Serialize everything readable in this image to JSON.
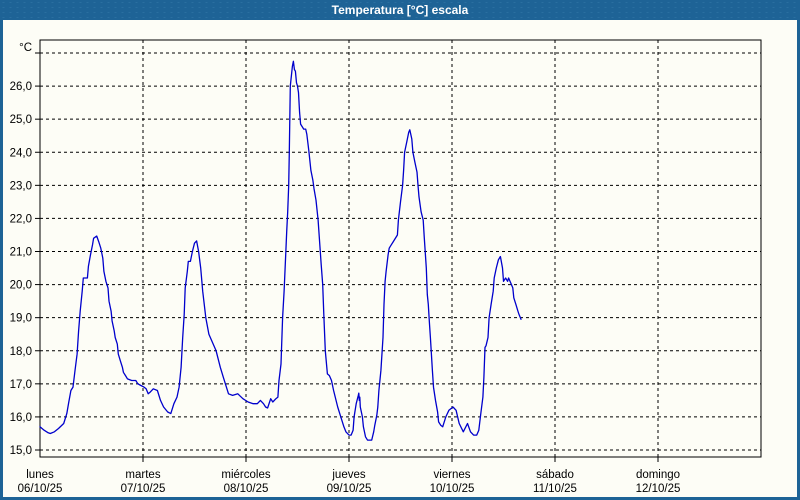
{
  "window": {
    "title": "Temperatura [°C] escala"
  },
  "colors": {
    "title_bar": "#1e6396",
    "frame_border": "#1e6396",
    "plot_background": "#fdfdf6",
    "grid": "#000000",
    "axis_text": "#000000",
    "series_line": "#0000cc"
  },
  "chart_data": {
    "type": "line",
    "title": "Temperatura [°C] escala",
    "xlabel": "",
    "ylabel": "°C",
    "ylim": [
      15,
      27
    ],
    "grid": "dashed",
    "legend": "none",
    "y_axis": {
      "unit_label": "°C",
      "gridline_step": 1,
      "ticks": [
        {
          "v": 27,
          "label": ""
        },
        {
          "v": 26,
          "label": "26,0"
        },
        {
          "v": 25,
          "label": "25,0"
        },
        {
          "v": 24,
          "label": "24,0"
        },
        {
          "v": 23,
          "label": "23,0"
        },
        {
          "v": 22,
          "label": "22,0"
        },
        {
          "v": 21,
          "label": "21,0"
        },
        {
          "v": 20,
          "label": "20,0"
        },
        {
          "v": 19,
          "label": "19,0"
        },
        {
          "v": 18,
          "label": "18,0"
        },
        {
          "v": 17,
          "label": "17,0"
        },
        {
          "v": 16,
          "label": "16,0"
        },
        {
          "v": 15,
          "label": "15,0"
        }
      ]
    },
    "x_axis": {
      "days": [
        {
          "name": "lunes",
          "date": "06/10/25"
        },
        {
          "name": "martes",
          "date": "07/10/25"
        },
        {
          "name": "miércoles",
          "date": "08/10/25"
        },
        {
          "name": "jueves",
          "date": "09/10/25"
        },
        {
          "name": "viernes",
          "date": "10/10/25"
        },
        {
          "name": "sábado",
          "date": "11/10/25"
        },
        {
          "name": "domingo",
          "date": "12/10/25"
        }
      ]
    },
    "series": [
      {
        "name": "Temperatura",
        "color": "#0000cc",
        "x_unit": "days_since_monday_00h",
        "y_unit": "°C",
        "points": [
          [
            0.0,
            15.7
          ],
          [
            0.04,
            15.6
          ],
          [
            0.08,
            15.52
          ],
          [
            0.1,
            15.5
          ],
          [
            0.14,
            15.55
          ],
          [
            0.18,
            15.65
          ],
          [
            0.23,
            15.8
          ],
          [
            0.26,
            16.1
          ],
          [
            0.28,
            16.45
          ],
          [
            0.3,
            16.8
          ],
          [
            0.32,
            16.9
          ],
          [
            0.34,
            17.4
          ],
          [
            0.36,
            17.9
          ],
          [
            0.375,
            18.6
          ],
          [
            0.39,
            19.2
          ],
          [
            0.41,
            19.8
          ],
          [
            0.42,
            20.2
          ],
          [
            0.46,
            20.2
          ],
          [
            0.47,
            20.55
          ],
          [
            0.49,
            20.9
          ],
          [
            0.51,
            21.2
          ],
          [
            0.52,
            21.4
          ],
          [
            0.55,
            21.47
          ],
          [
            0.57,
            21.3
          ],
          [
            0.59,
            21.1
          ],
          [
            0.61,
            20.8
          ],
          [
            0.62,
            20.4
          ],
          [
            0.64,
            20.1
          ],
          [
            0.66,
            19.9
          ],
          [
            0.67,
            19.5
          ],
          [
            0.69,
            19.2
          ],
          [
            0.7,
            18.9
          ],
          [
            0.72,
            18.6
          ],
          [
            0.73,
            18.4
          ],
          [
            0.75,
            18.2
          ],
          [
            0.76,
            17.9
          ],
          [
            0.78,
            17.7
          ],
          [
            0.8,
            17.5
          ],
          [
            0.81,
            17.35
          ],
          [
            0.83,
            17.25
          ],
          [
            0.85,
            17.15
          ],
          [
            0.89,
            17.1
          ],
          [
            0.93,
            17.1
          ],
          [
            0.95,
            17.0
          ],
          [
            0.98,
            16.95
          ],
          [
            1.01,
            16.9
          ],
          [
            1.03,
            16.85
          ],
          [
            1.05,
            16.7
          ],
          [
            1.07,
            16.75
          ],
          [
            1.1,
            16.85
          ],
          [
            1.14,
            16.8
          ],
          [
            1.17,
            16.5
          ],
          [
            1.2,
            16.3
          ],
          [
            1.24,
            16.15
          ],
          [
            1.27,
            16.1
          ],
          [
            1.3,
            16.4
          ],
          [
            1.33,
            16.6
          ],
          [
            1.35,
            16.9
          ],
          [
            1.37,
            17.5
          ],
          [
            1.385,
            18.4
          ],
          [
            1.4,
            19.1
          ],
          [
            1.41,
            19.9
          ],
          [
            1.43,
            20.4
          ],
          [
            1.44,
            20.7
          ],
          [
            1.46,
            20.7
          ],
          [
            1.48,
            21.0
          ],
          [
            1.5,
            21.25
          ],
          [
            1.52,
            21.32
          ],
          [
            1.54,
            21.0
          ],
          [
            1.56,
            20.5
          ],
          [
            1.58,
            19.8
          ],
          [
            1.61,
            19.0
          ],
          [
            1.64,
            18.5
          ],
          [
            1.71,
            18.0
          ],
          [
            1.75,
            17.5
          ],
          [
            1.78,
            17.2
          ],
          [
            1.83,
            16.7
          ],
          [
            1.87,
            16.65
          ],
          [
            1.92,
            16.7
          ],
          [
            1.97,
            16.55
          ],
          [
            2.02,
            16.45
          ],
          [
            2.07,
            16.4
          ],
          [
            2.11,
            16.4
          ],
          [
            2.14,
            16.5
          ],
          [
            2.17,
            16.4
          ],
          [
            2.19,
            16.3
          ],
          [
            2.21,
            16.27
          ],
          [
            2.24,
            16.55
          ],
          [
            2.26,
            16.45
          ],
          [
            2.29,
            16.55
          ],
          [
            2.31,
            16.6
          ],
          [
            2.32,
            17.1
          ],
          [
            2.34,
            17.6
          ],
          [
            2.355,
            19.0
          ],
          [
            2.37,
            19.8
          ],
          [
            2.385,
            20.9
          ],
          [
            2.395,
            21.6
          ],
          [
            2.405,
            22.2
          ],
          [
            2.415,
            23.0
          ],
          [
            2.42,
            24.0
          ],
          [
            2.425,
            25.0
          ],
          [
            2.43,
            26.0
          ],
          [
            2.45,
            26.6
          ],
          [
            2.46,
            26.75
          ],
          [
            2.47,
            26.5
          ],
          [
            2.48,
            26.45
          ],
          [
            2.49,
            26.1
          ],
          [
            2.5,
            26.0
          ],
          [
            2.51,
            25.8
          ],
          [
            2.52,
            25.2
          ],
          [
            2.53,
            24.85
          ],
          [
            2.56,
            24.7
          ],
          [
            2.58,
            24.7
          ],
          [
            2.59,
            24.55
          ],
          [
            2.61,
            24.05
          ],
          [
            2.63,
            23.45
          ],
          [
            2.65,
            23.15
          ],
          [
            2.66,
            22.9
          ],
          [
            2.68,
            22.55
          ],
          [
            2.7,
            21.95
          ],
          [
            2.73,
            20.6
          ],
          [
            2.745,
            20.0
          ],
          [
            2.755,
            19.1
          ],
          [
            2.77,
            18.0
          ],
          [
            2.79,
            17.3
          ],
          [
            2.81,
            17.25
          ],
          [
            2.83,
            17.1
          ],
          [
            2.85,
            16.8
          ],
          [
            2.89,
            16.3
          ],
          [
            2.92,
            16.0
          ],
          [
            2.95,
            15.7
          ],
          [
            2.97,
            15.55
          ],
          [
            3.0,
            15.45
          ],
          [
            3.02,
            15.45
          ],
          [
            3.04,
            15.6
          ],
          [
            3.05,
            16.0
          ],
          [
            3.07,
            16.4
          ],
          [
            3.09,
            16.65
          ],
          [
            3.095,
            16.72
          ],
          [
            3.1,
            16.5
          ],
          [
            3.105,
            16.6
          ],
          [
            3.11,
            16.3
          ],
          [
            3.13,
            16.0
          ],
          [
            3.14,
            15.7
          ],
          [
            3.16,
            15.4
          ],
          [
            3.18,
            15.3
          ],
          [
            3.22,
            15.3
          ],
          [
            3.24,
            15.55
          ],
          [
            3.25,
            15.75
          ],
          [
            3.27,
            16.05
          ],
          [
            3.28,
            16.3
          ],
          [
            3.29,
            16.8
          ],
          [
            3.3,
            17.1
          ],
          [
            3.31,
            17.4
          ],
          [
            3.33,
            18.4
          ],
          [
            3.34,
            19.4
          ],
          [
            3.35,
            20.1
          ],
          [
            3.36,
            20.4
          ],
          [
            3.38,
            20.9
          ],
          [
            3.39,
            21.1
          ],
          [
            3.41,
            21.2
          ],
          [
            3.43,
            21.3
          ],
          [
            3.47,
            21.5
          ],
          [
            3.48,
            21.95
          ],
          [
            3.5,
            22.5
          ],
          [
            3.52,
            23.0
          ],
          [
            3.53,
            23.45
          ],
          [
            3.54,
            24.0
          ],
          [
            3.56,
            24.3
          ],
          [
            3.58,
            24.6
          ],
          [
            3.59,
            24.68
          ],
          [
            3.61,
            24.4
          ],
          [
            3.62,
            24.0
          ],
          [
            3.64,
            23.7
          ],
          [
            3.66,
            23.4
          ],
          [
            3.67,
            23.0
          ],
          [
            3.68,
            22.65
          ],
          [
            3.7,
            22.2
          ],
          [
            3.72,
            21.95
          ],
          [
            3.73,
            21.45
          ],
          [
            3.74,
            21.0
          ],
          [
            3.75,
            20.5
          ],
          [
            3.76,
            19.7
          ],
          [
            3.77,
            19.4
          ],
          [
            3.78,
            18.9
          ],
          [
            3.79,
            18.4
          ],
          [
            3.8,
            17.9
          ],
          [
            3.81,
            17.4
          ],
          [
            3.82,
            16.9
          ],
          [
            3.84,
            16.5
          ],
          [
            3.86,
            16.15
          ],
          [
            3.87,
            15.85
          ],
          [
            3.89,
            15.75
          ],
          [
            3.91,
            15.7
          ],
          [
            3.94,
            16.0
          ],
          [
            3.97,
            16.2
          ],
          [
            4.01,
            16.3
          ],
          [
            4.04,
            16.2
          ],
          [
            4.07,
            15.8
          ],
          [
            4.11,
            15.55
          ],
          [
            4.15,
            15.8
          ],
          [
            4.18,
            15.55
          ],
          [
            4.21,
            15.45
          ],
          [
            4.24,
            15.45
          ],
          [
            4.26,
            15.6
          ],
          [
            4.28,
            16.1
          ],
          [
            4.3,
            16.6
          ],
          [
            4.31,
            17.2
          ],
          [
            4.32,
            18.1
          ],
          [
            4.33,
            18.15
          ],
          [
            4.35,
            18.4
          ],
          [
            4.36,
            19.0
          ],
          [
            4.38,
            19.4
          ],
          [
            4.4,
            19.8
          ],
          [
            4.41,
            20.2
          ],
          [
            4.43,
            20.5
          ],
          [
            4.45,
            20.75
          ],
          [
            4.47,
            20.85
          ],
          [
            4.49,
            20.5
          ],
          [
            4.5,
            20.1
          ],
          [
            4.52,
            20.2
          ],
          [
            4.54,
            20.1
          ],
          [
            4.55,
            20.2
          ],
          [
            4.57,
            20.05
          ],
          [
            4.59,
            19.9
          ],
          [
            4.6,
            19.6
          ],
          [
            4.62,
            19.4
          ],
          [
            4.64,
            19.2
          ],
          [
            4.65,
            19.1
          ],
          [
            4.67,
            18.95
          ]
        ]
      }
    ]
  }
}
